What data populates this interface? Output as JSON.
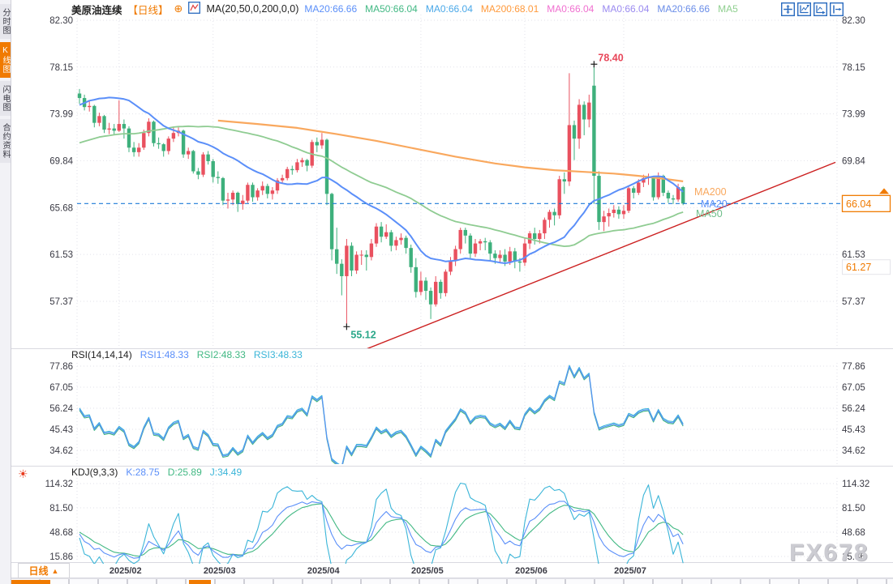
{
  "app": {
    "watermark": "FX678"
  },
  "icons": {
    "sun": "☀",
    "dropdown_up": "▲",
    "plus_circle": "⊕"
  },
  "sidebar": {
    "tabs": [
      {
        "label": "分时图",
        "active": false
      },
      {
        "label": "K线图",
        "active": true
      },
      {
        "label": "闪电图",
        "active": false
      },
      {
        "label": "合约资料",
        "active": false
      }
    ]
  },
  "topbar": {
    "symbol": "美原油连续",
    "period_tag": "【日线】",
    "ma_formula": "MA(20,50,0,200,0,0)",
    "readouts": [
      {
        "text": "MA20:66.66",
        "color": "#5b8ff9"
      },
      {
        "text": "MA50:66.04",
        "color": "#41b883"
      },
      {
        "text": "MA0:66.04",
        "color": "#4aa8e8"
      },
      {
        "text": "MA200:68.01",
        "color": "#ff9a3c"
      },
      {
        "text": "MA0:66.04",
        "color": "#f070d0"
      },
      {
        "text": "MA0:66.04",
        "color": "#9b8bf0"
      },
      {
        "text": "MA20:66.66",
        "color": "#6a8de8"
      },
      {
        "text": "MA5",
        "color": "#8fcf8f"
      }
    ]
  },
  "panels": {
    "rsi": {
      "title": "RSI(14,14,14)",
      "readouts": [
        {
          "text": "RSI1:48.33",
          "color": "#5b8ff9"
        },
        {
          "text": "RSI2:48.33",
          "color": "#41b883"
        },
        {
          "text": "RSI3:48.33",
          "color": "#3ab5d8"
        }
      ]
    },
    "kdj": {
      "title": "KDJ(9,3,3)",
      "readouts": [
        {
          "text": "K:28.75",
          "color": "#5b8ff9"
        },
        {
          "text": "D:25.89",
          "color": "#41b883"
        },
        {
          "text": "J:34.49",
          "color": "#3ab5d8"
        }
      ]
    }
  },
  "bottom": {
    "period_label": "日线"
  },
  "chart_data": {
    "type": "candlestick+indicators",
    "title": "美原油连续 日线 (WTI crude continuous, daily)",
    "price_axis_ticks": [
      "82.30",
      "78.15",
      "73.99",
      "69.84",
      "65.68",
      "61.53",
      "57.37"
    ],
    "rsi_axis_ticks": [
      "77.86",
      "67.05",
      "56.24",
      "45.43",
      "34.62"
    ],
    "kdj_axis_ticks": [
      "114.32",
      "81.50",
      "48.68",
      "15.86"
    ],
    "last_price_label": "66.04",
    "last_price": 66.04,
    "secondary_level_label": "61.27",
    "secondary_level": 61.27,
    "high_annotation": {
      "value": "78.40",
      "index": 104
    },
    "low_annotation": {
      "value": "55.12",
      "index": 54
    },
    "line_labels": {
      "ma200": "MA200",
      "ma20": "MA20",
      "ma50": "MA50"
    },
    "month_ticks": [
      {
        "label": "2025/02",
        "index": 8
      },
      {
        "label": "2025/03",
        "index": 27
      },
      {
        "label": "2025/04",
        "index": 48
      },
      {
        "label": "2025/05",
        "index": 69
      },
      {
        "label": "2025/06",
        "index": 90
      },
      {
        "label": "2025/07",
        "index": 110
      }
    ],
    "pre_closes": [
      68.3,
      68.0,
      68.4,
      67.0,
      67.1,
      69.2,
      69.7,
      68.9,
      70.1,
      71.2,
      71.0,
      70.3,
      68.7,
      68.0,
      68.1,
      68.6,
      68.5,
      67.2,
      67.2,
      68.4,
      70.3,
      70.1,
      69.4,
      70.0,
      69.9,
      69.4,
      69.6,
      70.1,
      69.7,
      70.6,
      70.9,
      71.0,
      70.7,
      71.4,
      71.7,
      72.0,
      71.6,
      73.1,
      73.9,
      74.0,
      73.6,
      76.6,
      77.4,
      78.7,
      77.5,
      79.0,
      78.3,
      77.9,
      76.4,
      75.5
    ],
    "candles": [
      [
        75.8,
        76.2,
        74.9,
        75.4
      ],
      [
        75.4,
        75.7,
        74.3,
        74.6
      ],
      [
        74.6,
        75.2,
        74.2,
        74.7
      ],
      [
        74.7,
        74.8,
        72.8,
        73.2
      ],
      [
        73.2,
        74.1,
        72.9,
        73.8
      ],
      [
        73.8,
        73.9,
        72.3,
        72.6
      ],
      [
        72.6,
        73.2,
        72.2,
        72.7
      ],
      [
        72.7,
        73.1,
        72.1,
        72.5
      ],
      [
        72.5,
        75.2,
        72.4,
        73.1
      ],
      [
        73.1,
        73.5,
        71.8,
        72.7
      ],
      [
        72.7,
        72.9,
        70.6,
        71.0
      ],
      [
        71.0,
        71.5,
        70.2,
        70.6
      ],
      [
        70.6,
        71.4,
        70.2,
        71.0
      ],
      [
        71.0,
        72.6,
        70.8,
        72.3
      ],
      [
        72.3,
        73.6,
        72.0,
        73.3
      ],
      [
        73.3,
        73.4,
        71.1,
        71.4
      ],
      [
        71.4,
        71.9,
        70.9,
        71.3
      ],
      [
        71.3,
        71.4,
        70.2,
        70.7
      ],
      [
        70.7,
        72.0,
        70.4,
        71.8
      ],
      [
        71.8,
        72.8,
        71.5,
        72.3
      ],
      [
        72.3,
        72.8,
        72.0,
        72.5
      ],
      [
        72.5,
        72.6,
        70.1,
        70.4
      ],
      [
        70.4,
        71.0,
        70.0,
        70.7
      ],
      [
        70.7,
        70.8,
        68.7,
        68.9
      ],
      [
        68.9,
        69.2,
        68.2,
        68.6
      ],
      [
        68.6,
        70.6,
        68.4,
        70.4
      ],
      [
        70.4,
        70.7,
        69.5,
        69.8
      ],
      [
        69.8,
        70.0,
        67.9,
        68.4
      ],
      [
        68.4,
        68.9,
        67.8,
        68.3
      ],
      [
        68.3,
        68.4,
        65.9,
        66.3
      ],
      [
        66.3,
        67.0,
        65.6,
        66.4
      ],
      [
        66.4,
        67.2,
        65.9,
        67.0
      ],
      [
        67.0,
        67.1,
        65.3,
        66.0
      ],
      [
        66.0,
        66.8,
        65.5,
        66.3
      ],
      [
        66.3,
        67.9,
        66.1,
        67.7
      ],
      [
        67.7,
        67.9,
        66.2,
        66.6
      ],
      [
        66.6,
        67.4,
        66.3,
        67.2
      ],
      [
        67.2,
        68.0,
        66.8,
        67.6
      ],
      [
        67.6,
        67.8,
        66.5,
        66.9
      ],
      [
        66.9,
        67.5,
        66.4,
        67.2
      ],
      [
        67.2,
        68.3,
        66.9,
        68.1
      ],
      [
        68.1,
        68.6,
        67.8,
        68.3
      ],
      [
        68.3,
        69.3,
        68.1,
        69.1
      ],
      [
        69.1,
        69.4,
        68.6,
        69.0
      ],
      [
        69.0,
        70.0,
        68.8,
        69.7
      ],
      [
        69.7,
        70.1,
        69.3,
        69.9
      ],
      [
        69.9,
        70.0,
        68.9,
        69.4
      ],
      [
        69.4,
        71.7,
        69.2,
        71.5
      ],
      [
        71.5,
        71.9,
        70.6,
        71.2
      ],
      [
        71.2,
        72.3,
        70.9,
        71.7
      ],
      [
        71.7,
        71.8,
        65.9,
        66.9
      ],
      [
        66.9,
        67.0,
        61.0,
        61.99
      ],
      [
        61.99,
        63.9,
        59.8,
        60.7
      ],
      [
        60.7,
        61.1,
        57.9,
        59.6
      ],
      [
        59.6,
        62.9,
        55.12,
        62.3
      ],
      [
        62.3,
        62.6,
        59.6,
        60.1
      ],
      [
        60.1,
        61.8,
        59.8,
        61.5
      ],
      [
        61.5,
        61.9,
        60.6,
        61.5
      ],
      [
        61.5,
        61.9,
        60.1,
        61.3
      ],
      [
        61.3,
        62.9,
        61.0,
        62.5
      ],
      [
        62.5,
        64.3,
        62.2,
        64.0
      ],
      [
        64.0,
        64.4,
        62.6,
        63.1
      ],
      [
        63.1,
        64.2,
        62.9,
        63.5
      ],
      [
        63.5,
        63.7,
        61.8,
        62.3
      ],
      [
        62.3,
        63.1,
        61.9,
        62.8
      ],
      [
        62.8,
        63.4,
        62.4,
        63.0
      ],
      [
        63.0,
        63.2,
        61.6,
        62.1
      ],
      [
        62.1,
        62.4,
        59.9,
        60.4
      ],
      [
        60.4,
        61.2,
        57.7,
        58.2
      ],
      [
        58.2,
        60.0,
        57.9,
        59.2
      ],
      [
        59.2,
        59.5,
        57.5,
        58.3
      ],
      [
        58.3,
        58.6,
        55.8,
        57.1
      ],
      [
        57.1,
        59.6,
        56.9,
        59.1
      ],
      [
        59.1,
        59.3,
        57.6,
        58.1
      ],
      [
        58.1,
        60.2,
        57.8,
        60.0
      ],
      [
        60.0,
        61.3,
        59.7,
        61.0
      ],
      [
        61.0,
        62.3,
        60.5,
        62.0
      ],
      [
        62.0,
        63.9,
        61.6,
        63.7
      ],
      [
        63.7,
        63.9,
        62.5,
        63.2
      ],
      [
        63.2,
        63.4,
        61.2,
        61.6
      ],
      [
        61.6,
        62.9,
        61.3,
        62.5
      ],
      [
        62.5,
        62.9,
        61.9,
        62.7
      ],
      [
        62.7,
        63.0,
        61.9,
        62.6
      ],
      [
        62.6,
        62.8,
        60.9,
        61.6
      ],
      [
        61.6,
        61.9,
        60.7,
        61.2
      ],
      [
        61.2,
        61.9,
        60.8,
        61.5
      ],
      [
        61.5,
        62.0,
        60.5,
        60.9
      ],
      [
        60.9,
        62.2,
        60.6,
        61.8
      ],
      [
        61.8,
        62.1,
        60.3,
        60.9
      ],
      [
        60.9,
        61.2,
        60.0,
        60.8
      ],
      [
        60.8,
        63.0,
        60.5,
        62.5
      ],
      [
        62.5,
        63.6,
        62.0,
        63.4
      ],
      [
        63.4,
        63.9,
        62.4,
        62.9
      ],
      [
        62.9,
        63.7,
        62.5,
        63.4
      ],
      [
        63.4,
        64.8,
        62.9,
        64.6
      ],
      [
        64.6,
        65.5,
        63.9,
        65.3
      ],
      [
        65.3,
        65.6,
        64.1,
        65.0
      ],
      [
        65.0,
        68.5,
        64.7,
        68.2
      ],
      [
        68.2,
        68.8,
        66.9,
        68.0
      ],
      [
        68.0,
        77.6,
        67.6,
        73.0
      ],
      [
        73.0,
        73.4,
        69.9,
        71.8
      ],
      [
        71.8,
        75.3,
        70.9,
        74.8
      ],
      [
        74.8,
        75.1,
        72.1,
        73.5
      ],
      [
        73.5,
        75.7,
        72.8,
        75.0
      ],
      [
        76.5,
        78.4,
        66.0,
        68.5
      ],
      [
        68.5,
        68.9,
        63.7,
        64.4
      ],
      [
        64.4,
        65.4,
        63.6,
        64.9
      ],
      [
        64.9,
        65.6,
        64.0,
        65.2
      ],
      [
        65.2,
        65.9,
        64.8,
        65.5
      ],
      [
        65.5,
        65.8,
        64.7,
        65.1
      ],
      [
        65.1,
        65.9,
        64.7,
        65.4
      ],
      [
        65.4,
        67.6,
        65.2,
        67.4
      ],
      [
        67.4,
        67.6,
        66.5,
        67.0
      ],
      [
        67.0,
        68.2,
        66.8,
        67.9
      ],
      [
        67.9,
        68.6,
        67.5,
        68.3
      ],
      [
        68.3,
        68.7,
        67.7,
        68.4
      ],
      [
        68.4,
        68.5,
        66.3,
        66.6
      ],
      [
        66.6,
        68.8,
        66.4,
        68.5
      ],
      [
        68.5,
        68.6,
        66.7,
        67.0
      ],
      [
        67.0,
        67.2,
        66.1,
        66.5
      ],
      [
        66.5,
        66.8,
        66.0,
        66.4
      ],
      [
        66.4,
        67.8,
        66.2,
        67.5
      ],
      [
        67.5,
        67.6,
        65.9,
        66.04
      ]
    ],
    "ma200": [
      [
        28,
        73.4
      ],
      [
        36,
        73.1
      ],
      [
        44,
        72.75
      ],
      [
        52,
        72.2
      ],
      [
        60,
        71.6
      ],
      [
        68,
        70.9
      ],
      [
        76,
        70.2
      ],
      [
        84,
        69.6
      ],
      [
        90,
        69.25
      ],
      [
        96,
        69.0
      ],
      [
        102,
        68.85
      ],
      [
        108,
        68.7
      ],
      [
        113,
        68.5
      ],
      [
        118,
        68.25
      ],
      [
        122,
        68.01
      ]
    ],
    "trendline": {
      "start": {
        "index": 57.2,
        "price": 53.0
      },
      "end": {
        "index": 152.8,
        "price": 69.7
      }
    },
    "colors": {
      "up": "#e9515f",
      "down": "#3eb07c",
      "ma20": "#5b8ff9",
      "ma50": "#8fcc92",
      "ma200": "#f9a85e",
      "ma50_label": "#6fbe8a",
      "trendline": "#cc2020",
      "last_price_line": "#1d7ad8",
      "grid": "#e2e2ea",
      "separator": "#d9d9e0",
      "axis_text": "#3a3a44",
      "accent": "#f07a00",
      "rsi1": "#5b8ff9",
      "rsi2": "#41b883",
      "rsi3": "#3ab5d8",
      "high_label": "#e8475a",
      "low_label": "#2aa789",
      "marker_cross": "#222222"
    }
  }
}
